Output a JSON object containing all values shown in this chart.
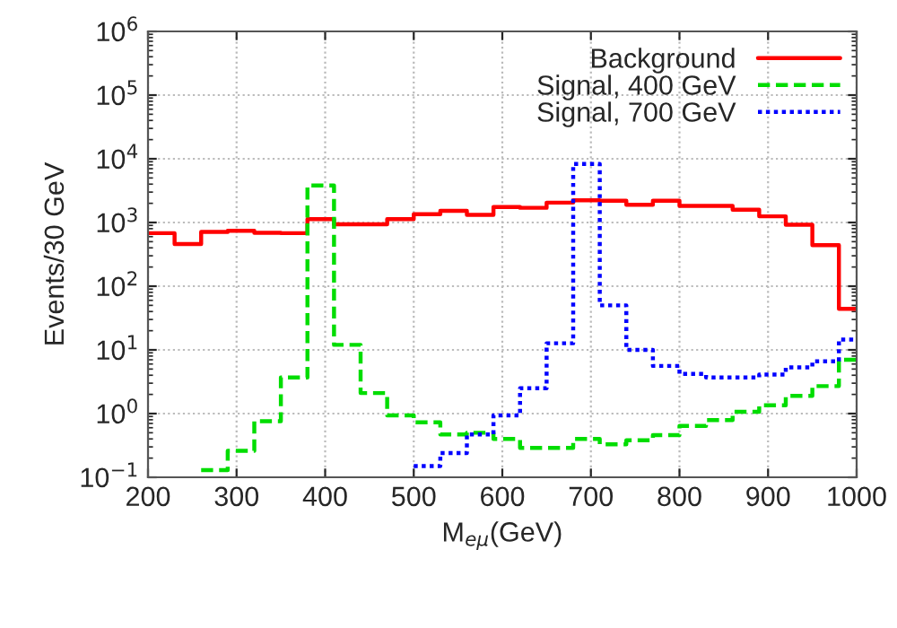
{
  "chart_data": {
    "type": "histogram",
    "xlabel": "M$_{eμ}$(GeV)",
    "ylabel": "Events/30 GeV",
    "bins": [
      200,
      230,
      260,
      290,
      320,
      350,
      380,
      410,
      440,
      470,
      500,
      530,
      560,
      590,
      620,
      650,
      680,
      710,
      740,
      770,
      800,
      830,
      860,
      890,
      920,
      950,
      980,
      1000
    ],
    "series": [
      {
        "name": "Background",
        "color": "#ff0000",
        "line_style": "solid",
        "values": [
          680,
          460,
          710,
          740,
          690,
          680,
          1130,
          940,
          940,
          1130,
          1350,
          1520,
          1320,
          1750,
          1700,
          2050,
          2230,
          2200,
          1900,
          2200,
          1820,
          1820,
          1590,
          1250,
          920,
          440,
          44
        ]
      },
      {
        "name": "Signal, 400 GeV",
        "color": "#00dd00",
        "line_style": "dashed",
        "bins": [
          260,
          290,
          320,
          350,
          380,
          410,
          440,
          470,
          500,
          530,
          560,
          590,
          620,
          650,
          680,
          710,
          740,
          770,
          800,
          830,
          860,
          890,
          920,
          950,
          980,
          1000
        ],
        "values": [
          0.13,
          0.26,
          0.76,
          3.7,
          3800,
          12,
          2.1,
          0.94,
          0.73,
          0.47,
          0.5,
          0.4,
          0.29,
          0.29,
          0.4,
          0.33,
          0.38,
          0.46,
          0.64,
          0.79,
          1.07,
          1.35,
          1.9,
          2.7,
          7
        ]
      },
      {
        "name": "Signal, 700 GeV",
        "color": "#0000ff",
        "line_style": "dotted",
        "bins": [
          500,
          530,
          560,
          590,
          620,
          650,
          680,
          710,
          740,
          770,
          800,
          830,
          860,
          890,
          920,
          950,
          980,
          1000
        ],
        "values": [
          0.15,
          0.24,
          0.47,
          0.94,
          2.5,
          12.7,
          8300,
          50,
          10,
          5.6,
          4.2,
          3.7,
          3.7,
          4.1,
          5.3,
          6.6,
          14.5
        ]
      }
    ],
    "log": "y",
    "xlim": [
      200,
      1000
    ],
    "ylim": [
      0.1,
      1000000
    ],
    "xticks": [
      200,
      300,
      400,
      500,
      600,
      700,
      800,
      900,
      1000
    ],
    "yticks": [
      {
        "value": 0.1,
        "label": "10$^{−1}$"
      },
      {
        "value": 1,
        "label": "10$^{0}$"
      },
      {
        "value": 10,
        "label": "10$^{1}$"
      },
      {
        "value": 100,
        "label": "10$^{2}$"
      },
      {
        "value": 1000,
        "label": "10$^{3}$"
      },
      {
        "value": 10000,
        "label": "10$^{4}$"
      },
      {
        "value": 100000,
        "label": "10$^{5}$"
      },
      {
        "value": 1000000,
        "label": "10$^{6}$"
      }
    ],
    "grid": true,
    "legend": "top right"
  }
}
